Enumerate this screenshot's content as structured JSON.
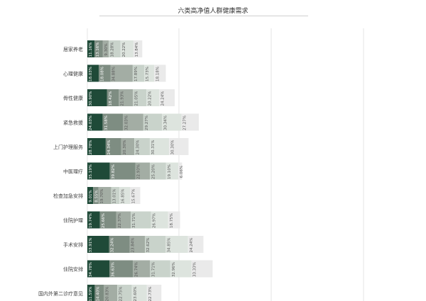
{
  "chart_data": {
    "type": "bar",
    "stacked": true,
    "orientation": "horizontal",
    "title": "六类高净值人群健康需求",
    "grid": true,
    "legend": "none",
    "categories": [
      "居家养老",
      "心理健康",
      "骨性健康",
      "紧急救援",
      "上门护理服务",
      "中医理疗",
      "检查加急安排",
      "住院护理",
      "手术安排",
      "住院安排",
      "国内外第二诊疗意见"
    ],
    "series": [
      {
        "color": "#1f4a38",
        "values": [
          11.16,
          18.03,
          30.9,
          24.03,
          28.78,
          35.19,
          9.01,
          19.74,
          33.91,
          34.78,
          11.59
        ]
      },
      {
        "color": "#7e8d82",
        "values": [
          13.16,
          18.08,
          18.42,
          31.58,
          24.34,
          39.82,
          8.55,
          25.66,
          32.24,
          36.63,
          14.4
        ]
      },
      {
        "color": "#a3ada4",
        "values": [
          9.3,
          34.88,
          21.93,
          32.03,
          20.3,
          22.93,
          19.7,
          22.37,
          23.84,
          26.74,
          20.83
        ]
      },
      {
        "color": "#c9d3cb",
        "values": [
          18.28,
          17.89,
          21.05,
          29.27,
          24.3,
          25.2,
          13.01,
          31.71,
          32.62,
          31.71,
          22.75
        ]
      },
      {
        "color": "#dde4de",
        "values": [
          20.22,
          15.73,
          20.22,
          30.34,
          30.31,
          19.1,
          16.85,
          26.97,
          34.85,
          32.96,
          23.6
        ]
      },
      {
        "color": "#eaeaea",
        "values": [
          13.84,
          18.18,
          24.24,
          27.27,
          30.3,
          6.06,
          15.67,
          18.75,
          24.24,
          33.33,
          22.73
        ]
      }
    ],
    "labels": [
      [
        "11.16%",
        "13.16%",
        "9.30%",
        "18.28%",
        "20.22%",
        "13.84%"
      ],
      [
        "18.03%",
        "18.08%",
        "34.88%",
        "17.89%",
        "15.73%",
        "18.18%"
      ],
      [
        "30.90%",
        "18.42%",
        "21.93%",
        "21.05%",
        "20.22%",
        "24.24%"
      ],
      [
        "24.03%",
        "31.58%",
        "32.03%",
        "29.27%",
        "30.34%",
        "27.27%"
      ],
      [
        "28.78%",
        "24.34%",
        "20.30%",
        "24.30%",
        "30.31%",
        "30.30%"
      ],
      [
        "35.19%",
        "39.82%",
        "22.93%",
        "25.20%",
        "19.10%",
        "6.06%"
      ],
      [
        "9.01%",
        "8.55%",
        "19.70%",
        "13.01%",
        "16.85%",
        "15.67%"
      ],
      [
        "19.74%",
        "25.66%",
        "22.37%",
        "31.71%",
        "26.97%",
        "18.75%"
      ],
      [
        "33.91%",
        "32.24%",
        "23.84%",
        "32.62%",
        "34.85%",
        "24.24%"
      ],
      [
        "34.78%",
        "36.63%",
        "26.74%",
        "31.71%",
        "32.96%",
        "33.33%"
      ],
      [
        "11.59%",
        "14.40%",
        "20.83%",
        "22.75%",
        "23.60%",
        "22.73%"
      ]
    ]
  }
}
